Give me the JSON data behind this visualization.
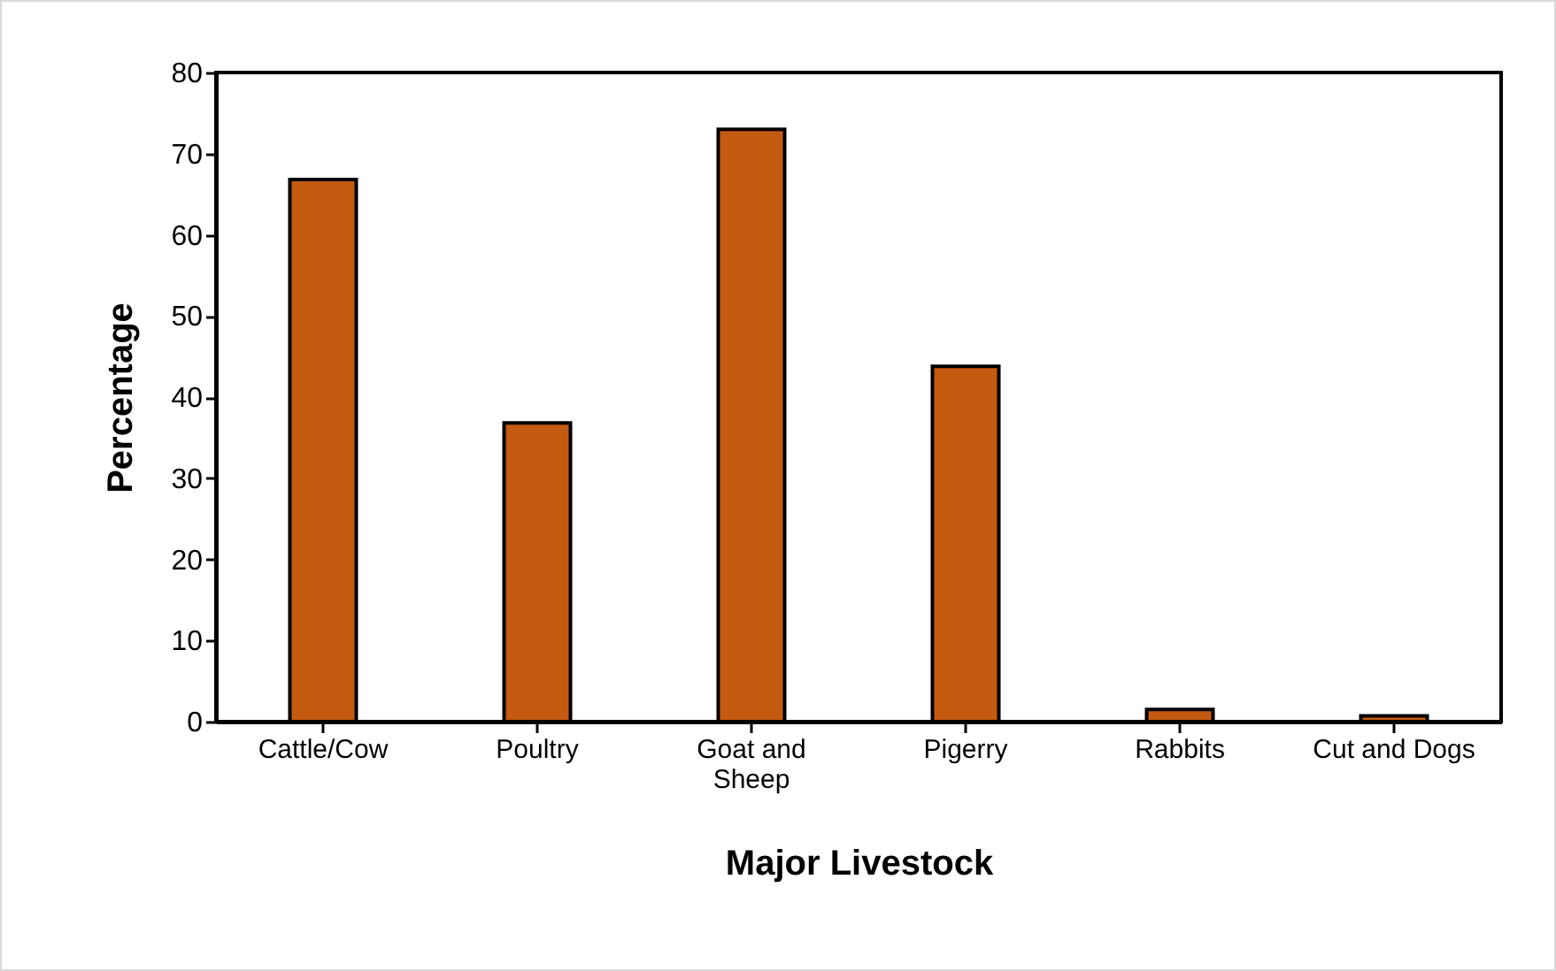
{
  "chart_data": {
    "type": "bar",
    "xlabel": "Major Livestock",
    "ylabel": "Percentage",
    "categories": [
      "Cattle/Cow",
      "Poultry",
      "Goat and Sheep",
      "Pigerry",
      "Rabbits",
      "Cut and Dogs"
    ],
    "values": [
      66.8,
      36.8,
      73.0,
      43.8,
      1.5,
      0.7
    ],
    "color": "#c55a11",
    "ylim": [
      0,
      80
    ],
    "yticks": [
      0,
      10,
      20,
      30,
      40,
      50,
      60,
      70,
      80
    ],
    "grid": false
  }
}
